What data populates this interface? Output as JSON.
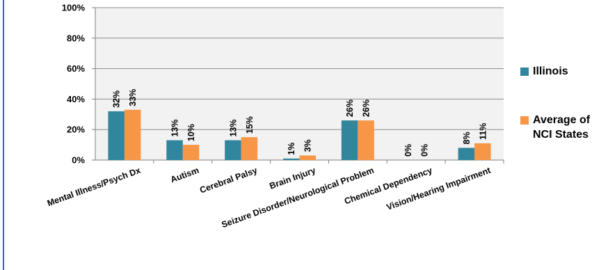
{
  "chart_data": {
    "type": "bar",
    "categories": [
      "Mental Illness/Psych Dx",
      "Autism",
      "Cerebral Palsy",
      "Brain Injury",
      "Seizure Disorder/Neurological Problem",
      "Chemical Dependency",
      "Vision/Hearing Impairment"
    ],
    "series": [
      {
        "name": "Illinois",
        "values": [
          32,
          13,
          13,
          1,
          26,
          0,
          8
        ],
        "labels": [
          "32%",
          "13%",
          "13%",
          "1%",
          "26%",
          "0%",
          "8%"
        ],
        "color": "#31859c"
      },
      {
        "name": "Average of\nNCI States",
        "values": [
          33,
          10,
          15,
          3,
          26,
          0,
          11
        ],
        "labels": [
          "33%",
          "10%",
          "15%",
          "3%",
          "26%",
          "0%",
          "11%"
        ],
        "color": "#f79646"
      }
    ],
    "ylim": [
      0,
      100
    ],
    "yticks": [
      "0%",
      "20%",
      "40%",
      "60%",
      "80%",
      "100%"
    ],
    "grid": true,
    "legend_position": "right"
  }
}
